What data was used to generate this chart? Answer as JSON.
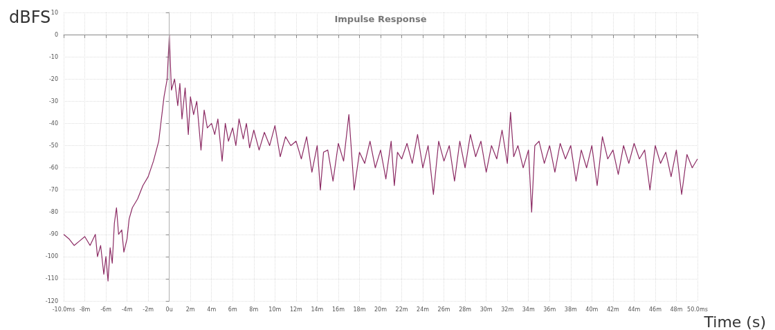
{
  "chart_data": {
    "type": "line",
    "title": "Impulse Response",
    "xlabel": "Time (s)",
    "ylabel": "dBFS",
    "x": [
      -10,
      -9.5,
      -9,
      -8.5,
      -8,
      -7.5,
      -7,
      -6.8,
      -6.5,
      -6.2,
      -6,
      -5.8,
      -5.6,
      -5.4,
      -5.2,
      -5,
      -4.8,
      -4.5,
      -4.3,
      -4,
      -3.8,
      -3.5,
      -3,
      -2.5,
      -2,
      -1.5,
      -1,
      -0.5,
      -0.2,
      0,
      0.2,
      0.5,
      0.8,
      1,
      1.2,
      1.5,
      1.8,
      2,
      2.3,
      2.6,
      3,
      3.3,
      3.6,
      4,
      4.3,
      4.6,
      5,
      5.3,
      5.6,
      6,
      6.3,
      6.6,
      7,
      7.3,
      7.6,
      8,
      8.5,
      9,
      9.5,
      10,
      10.5,
      11,
      11.5,
      12,
      12.5,
      13,
      13.5,
      14,
      14.3,
      14.6,
      15,
      15.5,
      16,
      16.5,
      17,
      17.5,
      18,
      18.5,
      19,
      19.5,
      20,
      20.5,
      21,
      21.3,
      21.6,
      22,
      22.5,
      23,
      23.5,
      24,
      24.5,
      25,
      25.5,
      26,
      26.5,
      27,
      27.5,
      28,
      28.5,
      29,
      29.5,
      30,
      30.5,
      31,
      31.5,
      32,
      32.3,
      32.6,
      33,
      33.5,
      34,
      34.3,
      34.6,
      35,
      35.5,
      36,
      36.5,
      37,
      37.5,
      38,
      38.5,
      39,
      39.5,
      40,
      40.5,
      41,
      41.5,
      42,
      42.5,
      43,
      43.5,
      44,
      44.5,
      45,
      45.5,
      46,
      46.5,
      47,
      47.5,
      48,
      48.5,
      49,
      49.5,
      50
    ],
    "series": [
      {
        "color": "#8b2a63",
        "values": [
          -90,
          -92,
          -95,
          -93,
          -91,
          -95,
          -90,
          -100,
          -95,
          -108,
          -100,
          -111,
          -96,
          -103,
          -85,
          -78,
          -90,
          -88,
          -98,
          -92,
          -83,
          -78,
          -74,
          -68,
          -64,
          -57,
          -48,
          -28,
          -20,
          0,
          -25,
          -20,
          -32,
          -22,
          -38,
          -24,
          -45,
          -28,
          -36,
          -30,
          -52,
          -34,
          -42,
          -40,
          -45,
          -38,
          -57,
          -40,
          -48,
          -42,
          -50,
          -38,
          -47,
          -40,
          -51,
          -43,
          -52,
          -44,
          -50,
          -41,
          -55,
          -46,
          -50,
          -48,
          -56,
          -46,
          -62,
          -50,
          -70,
          -53,
          -52,
          -66,
          -49,
          -57,
          -36,
          -70,
          -53,
          -58,
          -48,
          -60,
          -52,
          -65,
          -48,
          -68,
          -53,
          -56,
          -49,
          -58,
          -45,
          -60,
          -50,
          -72,
          -48,
          -57,
          -50,
          -66,
          -48,
          -60,
          -45,
          -55,
          -48,
          -62,
          -50,
          -56,
          -43,
          -58,
          -35,
          -55,
          -50,
          -60,
          -52,
          -80,
          -50,
          -48,
          -58,
          -50,
          -62,
          -49,
          -56,
          -50,
          -66,
          -52,
          -60,
          -50,
          -68,
          -46,
          -56,
          -52,
          -63,
          -50,
          -58,
          -49,
          -56,
          -52,
          -70,
          -50,
          -58,
          -53,
          -64,
          -52,
          -72,
          -54,
          -60,
          -56
        ]
      }
    ],
    "xlim": [
      -10,
      50
    ],
    "xticks": [
      {
        "value": -10,
        "label": "-10.0ms"
      },
      {
        "value": -8,
        "label": "-8m"
      },
      {
        "value": -6,
        "label": "-6m"
      },
      {
        "value": -4,
        "label": "-4m"
      },
      {
        "value": -2,
        "label": "-2m"
      },
      {
        "value": 0,
        "label": "0u"
      },
      {
        "value": 2,
        "label": "2m"
      },
      {
        "value": 4,
        "label": "4m"
      },
      {
        "value": 6,
        "label": "6m"
      },
      {
        "value": 8,
        "label": "8m"
      },
      {
        "value": 10,
        "label": "10m"
      },
      {
        "value": 12,
        "label": "12m"
      },
      {
        "value": 14,
        "label": "14m"
      },
      {
        "value": 16,
        "label": "16m"
      },
      {
        "value": 18,
        "label": "18m"
      },
      {
        "value": 20,
        "label": "20m"
      },
      {
        "value": 22,
        "label": "22m"
      },
      {
        "value": 24,
        "label": "24m"
      },
      {
        "value": 26,
        "label": "26m"
      },
      {
        "value": 28,
        "label": "28m"
      },
      {
        "value": 30,
        "label": "30m"
      },
      {
        "value": 32,
        "label": "32m"
      },
      {
        "value": 34,
        "label": "34m"
      },
      {
        "value": 36,
        "label": "36m"
      },
      {
        "value": 38,
        "label": "38m"
      },
      {
        "value": 40,
        "label": "40m"
      },
      {
        "value": 42,
        "label": "42m"
      },
      {
        "value": 44,
        "label": "44m"
      },
      {
        "value": 46,
        "label": "46m"
      },
      {
        "value": 48,
        "label": "48m"
      },
      {
        "value": 50,
        "label": "50.0ms"
      }
    ],
    "ylim": [
      -120,
      10
    ],
    "yticks": [
      -120,
      -110,
      -100,
      -90,
      -80,
      -70,
      -60,
      -50,
      -40,
      -30,
      -20,
      -10,
      0,
      10
    ],
    "ref_lines": [
      {
        "axis": "x",
        "value": 0,
        "color": "#b0b0b0"
      }
    ],
    "grid": true,
    "marker": "none",
    "line_style": "solid"
  }
}
